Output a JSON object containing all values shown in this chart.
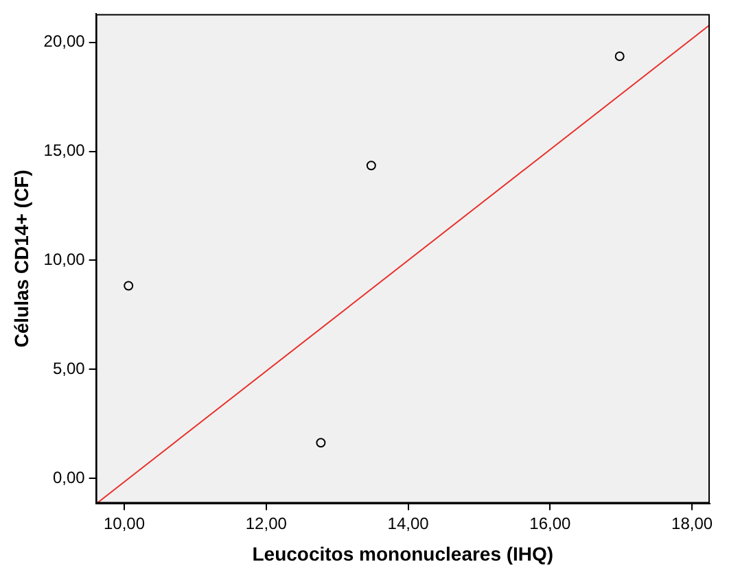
{
  "chart_data": {
    "type": "scatter",
    "xlabel": "Leucocitos mononucleares (IHQ)",
    "ylabel": "Células CD14+ (CF)",
    "xlim": [
      9.6,
      18.25
    ],
    "ylim": [
      -1.15,
      21.3
    ],
    "xticks": [
      {
        "value": 10,
        "label": "10,00"
      },
      {
        "value": 12,
        "label": "12,00"
      },
      {
        "value": 14,
        "label": "14,00"
      },
      {
        "value": 16,
        "label": "16,00"
      },
      {
        "value": 18,
        "label": "18,00"
      }
    ],
    "yticks": [
      {
        "value": 0,
        "label": "0,00"
      },
      {
        "value": 5,
        "label": "5,00"
      },
      {
        "value": 10,
        "label": "10,00"
      },
      {
        "value": 15,
        "label": "15,00"
      },
      {
        "value": 20,
        "label": "20,00"
      }
    ],
    "grid": false,
    "legend": false,
    "marker": "circle",
    "series": [
      {
        "type": "scatter",
        "color": "#000000",
        "x": [
          10.06,
          12.77,
          13.48,
          16.98
        ],
        "values": [
          8.83,
          1.63,
          14.35,
          19.36
        ]
      },
      {
        "type": "line",
        "color": "#e8302a",
        "line_style": "solid",
        "marker": "none",
        "x": [
          9.62,
          18.25
        ],
        "values": [
          -1.13,
          20.8
        ]
      }
    ]
  }
}
